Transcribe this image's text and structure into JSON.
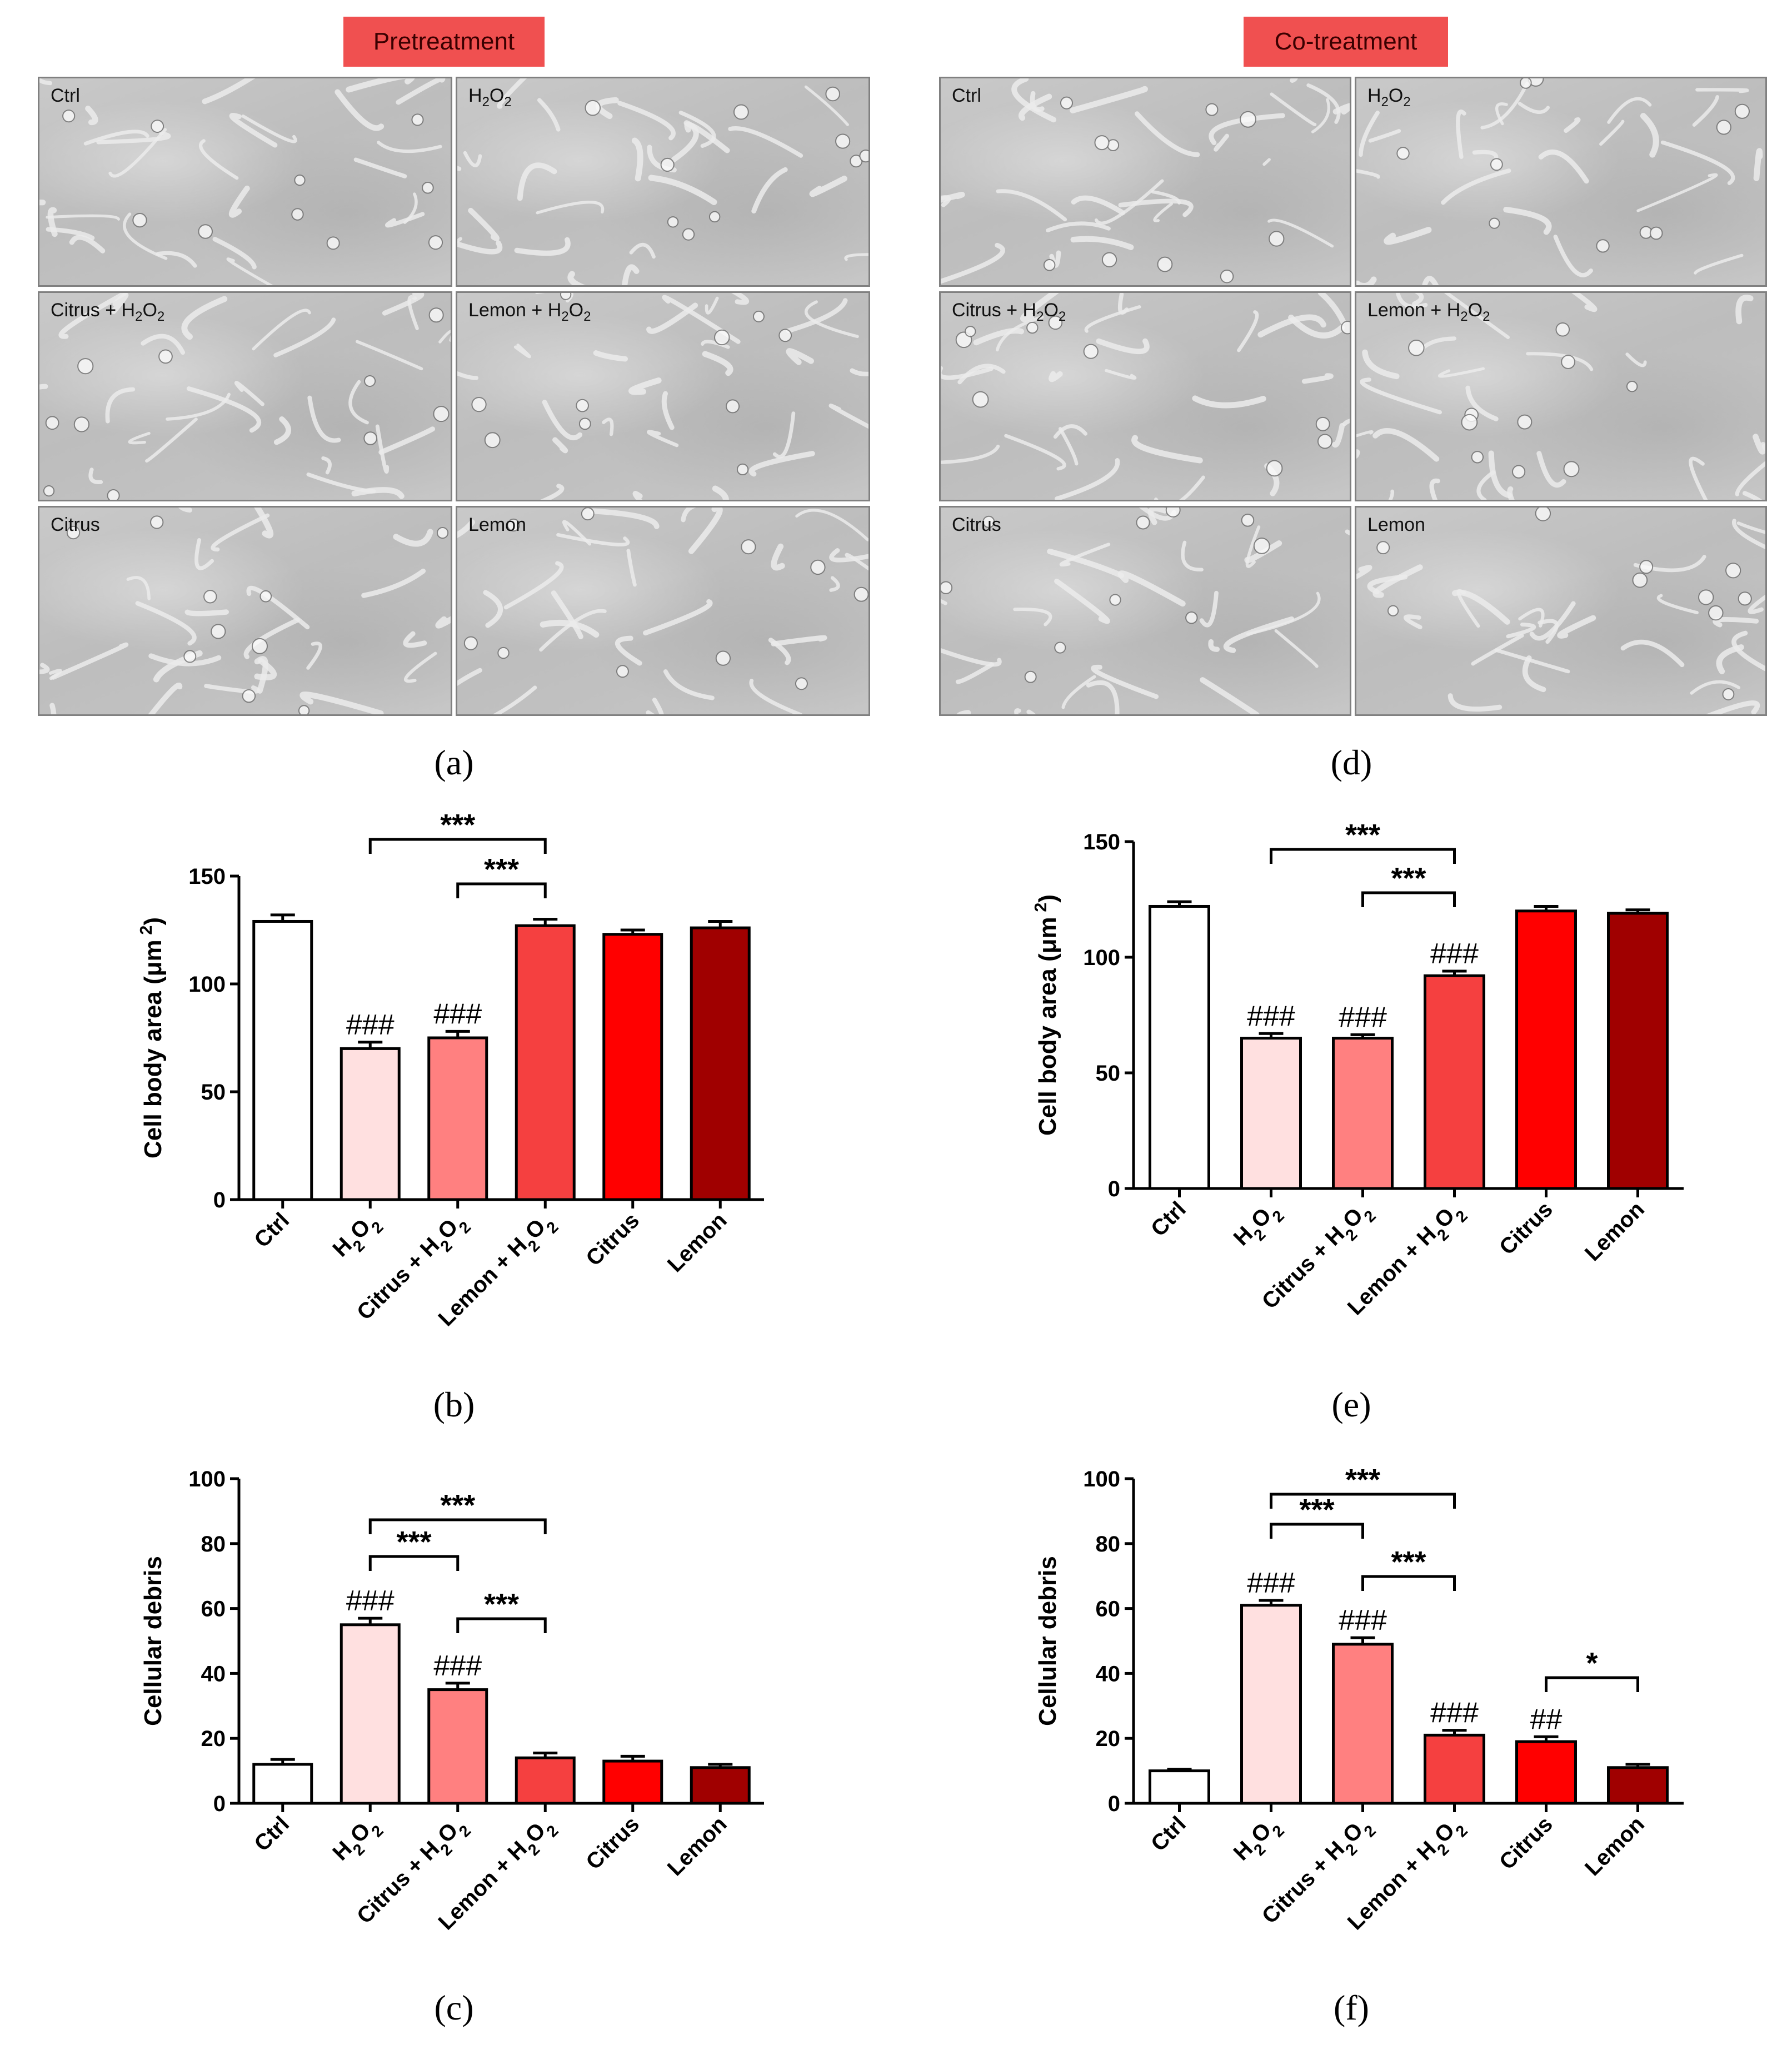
{
  "headers": {
    "pretreatment": "Pretreatment",
    "cotreatment": "Co-treatment"
  },
  "panel_letters": [
    "(a)",
    "(b)",
    "(c)",
    "(d)",
    "(e)",
    "(f)"
  ],
  "micrographs": {
    "pretreatment": [
      "Ctrl",
      "H2O2",
      "Citrus + H2O2",
      "Lemon + H2O2",
      "Citrus",
      "Lemon"
    ],
    "cotreatment": [
      "Ctrl",
      "H2O2",
      "Citrus + H2O2",
      "Lemon + H2O2",
      "Citrus",
      "Lemon"
    ]
  },
  "colors": {
    "ctrl": "#ffffff",
    "h2o2": "#ffe0e0",
    "citrus_h2o2": "#ff8080",
    "lemon_h2o2": "#f54040",
    "citrus": "#ff0000",
    "lemon": "#a00000",
    "header_bg": "#f05050"
  },
  "chart_data": [
    {
      "id": "b",
      "type": "bar",
      "categories": [
        "Ctrl",
        "H2O2",
        "Citrus + H2O2",
        "Lemon + H2O2",
        "Citrus",
        "Lemon"
      ],
      "values": [
        129,
        70,
        75,
        127,
        123,
        126
      ],
      "errors": [
        3,
        3,
        3,
        3,
        2,
        3
      ],
      "ylabel": "Cell body area (μm²)",
      "ylim": [
        0,
        150
      ],
      "yticks": [
        0,
        50,
        100,
        150
      ],
      "hash_labels": [
        "",
        "###",
        "###",
        "",
        "",
        ""
      ],
      "brackets": [
        {
          "from": 1,
          "to": 3,
          "label": "***",
          "level": 0
        },
        {
          "from": 2,
          "to": 3,
          "label": "***",
          "level": 1
        }
      ]
    },
    {
      "id": "c",
      "type": "bar",
      "categories": [
        "Ctrl",
        "H2O2",
        "Citrus + H2O2",
        "Lemon + H2O2",
        "Citrus",
        "Lemon"
      ],
      "values": [
        12,
        55,
        35,
        14,
        13,
        11
      ],
      "errors": [
        1.5,
        2,
        2,
        1.5,
        1.5,
        1
      ],
      "ylabel": "Cellular debris",
      "ylim": [
        0,
        100
      ],
      "yticks": [
        0,
        20,
        40,
        60,
        80,
        100
      ],
      "hash_labels": [
        "",
        "###",
        "###",
        "",
        "",
        ""
      ],
      "brackets": [
        {
          "from": 1,
          "to": 3,
          "label": "***",
          "level": 0
        },
        {
          "from": 1,
          "to": 2,
          "label": "***",
          "level": 1
        },
        {
          "from": 2,
          "to": 3,
          "label": "***",
          "level": 2
        }
      ]
    },
    {
      "id": "e",
      "type": "bar",
      "categories": [
        "Ctrl",
        "H2O2",
        "Citrus + H2O2",
        "Lemon + H2O2",
        "Citrus",
        "Lemon"
      ],
      "values": [
        122,
        65,
        65,
        92,
        120,
        119
      ],
      "errors": [
        2,
        2,
        1.5,
        2,
        2,
        1.5
      ],
      "ylabel": "Cell body area (μm²)",
      "ylim": [
        0,
        150
      ],
      "yticks": [
        0,
        50,
        100,
        150
      ],
      "hash_labels": [
        "",
        "###",
        "###",
        "###",
        "",
        ""
      ],
      "brackets": [
        {
          "from": 1,
          "to": 3,
          "label": "***",
          "level": 0
        },
        {
          "from": 2,
          "to": 3,
          "label": "***",
          "level": 1
        }
      ]
    },
    {
      "id": "f",
      "type": "bar",
      "categories": [
        "Ctrl",
        "H2O2",
        "Citrus + H2O2",
        "Lemon + H2O2",
        "Citrus",
        "Lemon"
      ],
      "values": [
        10,
        61,
        49,
        21,
        19,
        11
      ],
      "errors": [
        0.5,
        1.5,
        2,
        1.5,
        1.5,
        1
      ],
      "ylabel": "Cellular debris",
      "ylim": [
        0,
        100
      ],
      "yticks": [
        0,
        20,
        40,
        60,
        80,
        100
      ],
      "hash_labels": [
        "",
        "###",
        "###",
        "###",
        "##",
        ""
      ],
      "brackets": [
        {
          "from": 1,
          "to": 3,
          "label": "***",
          "level": 0
        },
        {
          "from": 1,
          "to": 2,
          "label": "***",
          "level": 1
        },
        {
          "from": 2,
          "to": 3,
          "label": "***",
          "level": 2
        },
        {
          "from": 4,
          "to": 5,
          "label": "*",
          "level": 3
        }
      ]
    }
  ]
}
